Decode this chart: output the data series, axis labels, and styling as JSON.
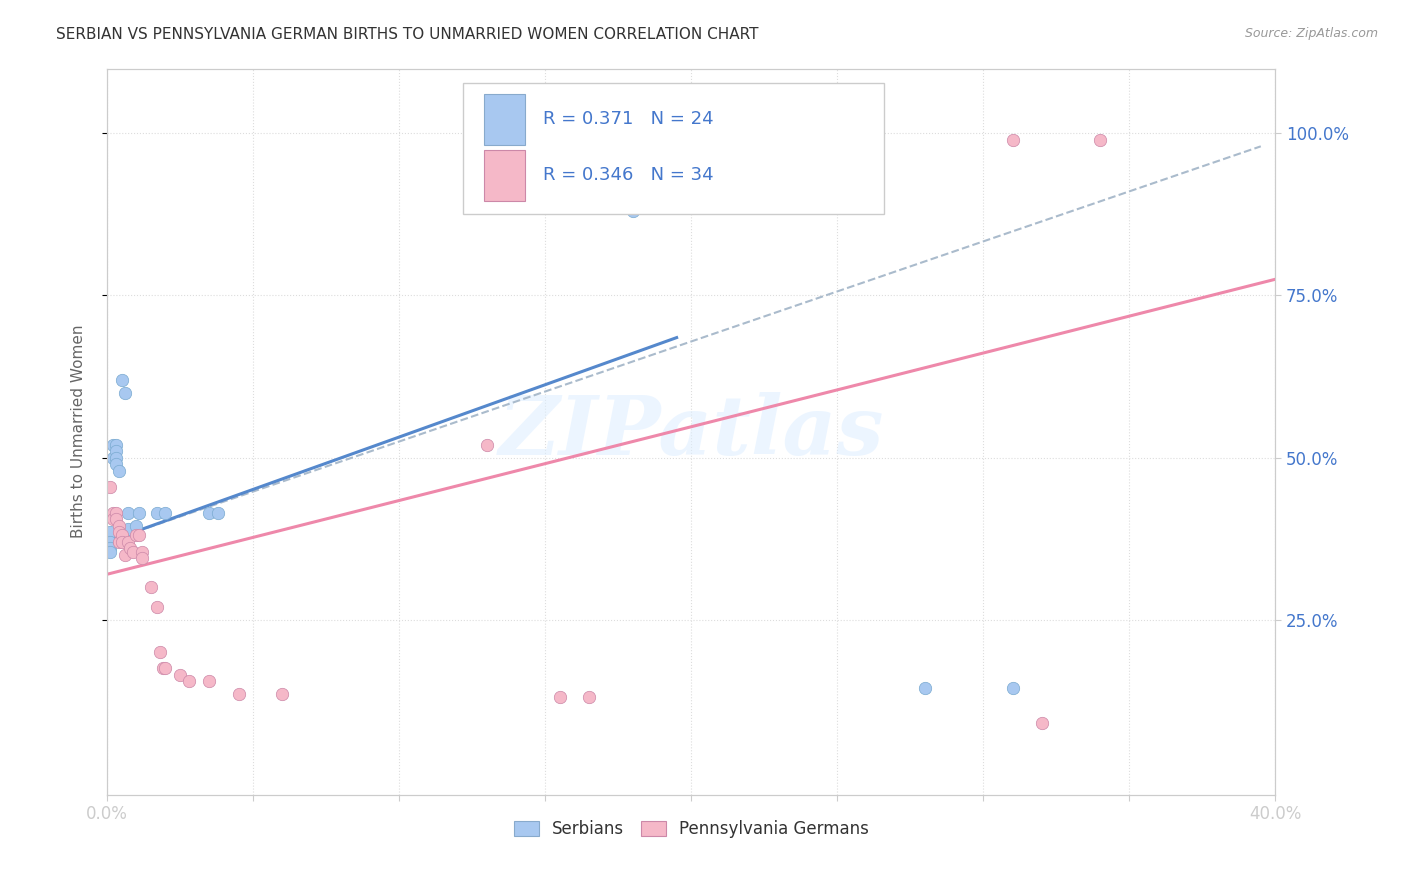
{
  "title": "SERBIAN VS PENNSYLVANIA GERMAN BIRTHS TO UNMARRIED WOMEN CORRELATION CHART",
  "source": "Source: ZipAtlas.com",
  "ylabel": "Births to Unmarried Women",
  "ytick_labels": [
    "25.0%",
    "50.0%",
    "75.0%",
    "100.0%"
  ],
  "ytick_values": [
    0.25,
    0.5,
    0.75,
    1.0
  ],
  "xlim": [
    0.0,
    0.4
  ],
  "ylim": [
    -0.02,
    1.1
  ],
  "legend_labels": [
    "Serbians",
    "Pennsylvania Germans"
  ],
  "background_color": "#ffffff",
  "grid_color": "#dddddd",
  "title_color": "#333333",
  "axis_label_color": "#666666",
  "tick_label_color": "#4477cc",
  "serbian_color": "#a8c8f0",
  "pg_color": "#f5b8c8",
  "watermark": "ZIPatlas",
  "serbian_points": [
    [
      0.001,
      0.385
    ],
    [
      0.001,
      0.37
    ],
    [
      0.001,
      0.36
    ],
    [
      0.001,
      0.355
    ],
    [
      0.002,
      0.5
    ],
    [
      0.002,
      0.52
    ],
    [
      0.003,
      0.52
    ],
    [
      0.003,
      0.51
    ],
    [
      0.003,
      0.5
    ],
    [
      0.003,
      0.49
    ],
    [
      0.004,
      0.48
    ],
    [
      0.005,
      0.62
    ],
    [
      0.006,
      0.6
    ],
    [
      0.007,
      0.39
    ],
    [
      0.007,
      0.415
    ],
    [
      0.01,
      0.395
    ],
    [
      0.011,
      0.415
    ],
    [
      0.017,
      0.415
    ],
    [
      0.02,
      0.415
    ],
    [
      0.035,
      0.415
    ],
    [
      0.038,
      0.415
    ],
    [
      0.18,
      0.88
    ],
    [
      0.28,
      0.145
    ],
    [
      0.31,
      0.145
    ]
  ],
  "pg_points": [
    [
      0.001,
      0.455
    ],
    [
      0.002,
      0.415
    ],
    [
      0.002,
      0.405
    ],
    [
      0.003,
      0.415
    ],
    [
      0.003,
      0.405
    ],
    [
      0.004,
      0.395
    ],
    [
      0.004,
      0.385
    ],
    [
      0.004,
      0.37
    ],
    [
      0.005,
      0.38
    ],
    [
      0.005,
      0.37
    ],
    [
      0.006,
      0.35
    ],
    [
      0.007,
      0.37
    ],
    [
      0.008,
      0.36
    ],
    [
      0.009,
      0.355
    ],
    [
      0.01,
      0.38
    ],
    [
      0.011,
      0.38
    ],
    [
      0.012,
      0.355
    ],
    [
      0.012,
      0.345
    ],
    [
      0.015,
      0.3
    ],
    [
      0.017,
      0.27
    ],
    [
      0.018,
      0.2
    ],
    [
      0.019,
      0.175
    ],
    [
      0.02,
      0.175
    ],
    [
      0.025,
      0.165
    ],
    [
      0.028,
      0.155
    ],
    [
      0.035,
      0.155
    ],
    [
      0.045,
      0.135
    ],
    [
      0.06,
      0.135
    ],
    [
      0.13,
      0.52
    ],
    [
      0.155,
      0.13
    ],
    [
      0.165,
      0.13
    ],
    [
      0.31,
      0.99
    ],
    [
      0.34,
      0.99
    ],
    [
      0.32,
      0.09
    ]
  ],
  "serbian_line_solid": {
    "x": [
      0.003,
      0.195
    ],
    "y": [
      0.375,
      0.685
    ]
  },
  "serbian_line_dashed": {
    "x": [
      0.003,
      0.395
    ],
    "y": [
      0.375,
      0.98
    ]
  },
  "pg_line": {
    "x": [
      0.0,
      0.4
    ],
    "y": [
      0.32,
      0.775
    ]
  },
  "serbian_line_color": "#5588cc",
  "serbian_dash_color": "#aabbcc",
  "pg_line_color": "#ee88aa",
  "r_serbian": "R = 0.371",
  "n_serbian": "N = 24",
  "r_pg": "R = 0.346",
  "n_pg": "N = 34"
}
